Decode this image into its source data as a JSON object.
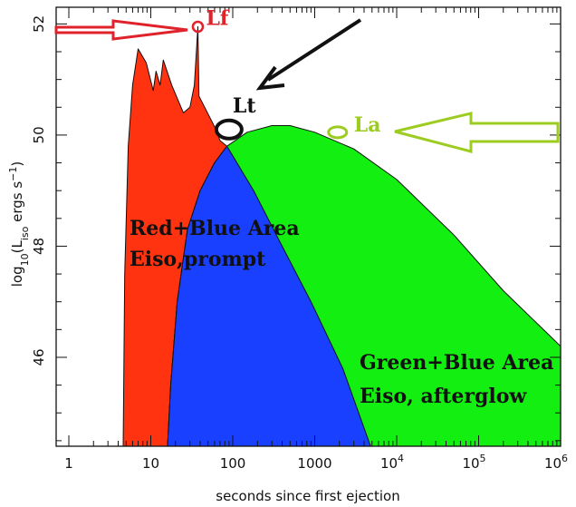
{
  "chart_data": {
    "type": "area",
    "xscale": "log",
    "xlim": [
      0.7,
      1000000
    ],
    "ylim": [
      44.4,
      52.3
    ],
    "x_ticks": [
      {
        "value": 1,
        "label": "1"
      },
      {
        "value": 10,
        "label": "10"
      },
      {
        "value": 100,
        "label": "100"
      },
      {
        "value": 1000,
        "label": "1000"
      },
      {
        "value": 10000,
        "label": "10",
        "sup": "4"
      },
      {
        "value": 100000,
        "label": "10",
        "sup": "5"
      },
      {
        "value": 1000000,
        "label": "10",
        "sup": "6"
      }
    ],
    "y_ticks": [
      {
        "value": 46,
        "label": "46"
      },
      {
        "value": 48,
        "label": "48"
      },
      {
        "value": 50,
        "label": "50"
      },
      {
        "value": 52,
        "label": "52"
      }
    ],
    "xlabel": "seconds since first ejection",
    "ylabel_parts": {
      "pre": "log",
      "sub1": "10",
      "mid": "(L",
      "sub2": "iso",
      "post1": " ergs s",
      "sup": "−1",
      "post2": ")"
    },
    "series": [
      {
        "name": "prompt",
        "color": "#ff3310",
        "points": [
          [
            4.6,
            44.4
          ],
          [
            4.8,
            47.5
          ],
          [
            5.3,
            49.8
          ],
          [
            6.0,
            50.9
          ],
          [
            7.0,
            51.55
          ],
          [
            8.8,
            51.3
          ],
          [
            10.7,
            50.8
          ],
          [
            11.6,
            51.15
          ],
          [
            13.0,
            50.9
          ],
          [
            14.2,
            51.35
          ],
          [
            18.0,
            50.9
          ],
          [
            25.0,
            50.4
          ],
          [
            30.0,
            50.5
          ],
          [
            34.0,
            50.9
          ],
          [
            37.5,
            51.95
          ],
          [
            38.7,
            50.7
          ],
          [
            42.0,
            50.6
          ],
          [
            60.0,
            50.15
          ],
          [
            70.0,
            49.9
          ],
          [
            85.0,
            49.8
          ],
          [
            60.0,
            49.5
          ],
          [
            40.0,
            49.0
          ],
          [
            28.0,
            48.3
          ],
          [
            21.0,
            47.0
          ],
          [
            17.5,
            45.5
          ],
          [
            16.0,
            44.4
          ]
        ]
      },
      {
        "name": "afterglow",
        "color": "#13ef10",
        "points": [
          [
            16.0,
            44.4
          ],
          [
            17.5,
            45.5
          ],
          [
            21.0,
            47.0
          ],
          [
            28.0,
            48.3
          ],
          [
            40.0,
            49.0
          ],
          [
            60.0,
            49.5
          ],
          [
            85.0,
            49.8
          ],
          [
            150.0,
            50.05
          ],
          [
            300.0,
            50.17
          ],
          [
            500.0,
            50.17
          ],
          [
            1000.0,
            50.05
          ],
          [
            3000.0,
            49.75
          ],
          [
            10000.0,
            49.2
          ],
          [
            50000.0,
            48.2
          ],
          [
            200000.0,
            47.2
          ],
          [
            1000000.0,
            46.2
          ],
          [
            1000000.0,
            44.4
          ]
        ]
      },
      {
        "name": "overlap",
        "color": "#1a40ff",
        "points": [
          [
            16.0,
            44.4
          ],
          [
            17.5,
            45.5
          ],
          [
            21.0,
            47.0
          ],
          [
            28.0,
            48.3
          ],
          [
            40.0,
            49.0
          ],
          [
            60.0,
            49.5
          ],
          [
            85.0,
            49.8
          ],
          [
            180.0,
            49.0
          ],
          [
            400.0,
            48.0
          ],
          [
            900.0,
            47.0
          ],
          [
            2200.0,
            45.8
          ],
          [
            4800.0,
            44.4
          ]
        ]
      }
    ],
    "annotations": {
      "lf": {
        "text": "Lf",
        "color": "#e0222a",
        "x": 37.5,
        "y": 51.95
      },
      "lt": {
        "text": "Lt",
        "color": "#111111",
        "x": 90,
        "y": 50.1
      },
      "la": {
        "text": "La",
        "color": "#9ccc20",
        "x": 1900,
        "y": 50.05
      },
      "red_blue_area": {
        "line1": "Red+Blue Area",
        "line2": "Eiso,prompt"
      },
      "green_blue_area": {
        "line1": "Green+Blue Area",
        "line2": "Eiso, afterglow"
      }
    }
  }
}
